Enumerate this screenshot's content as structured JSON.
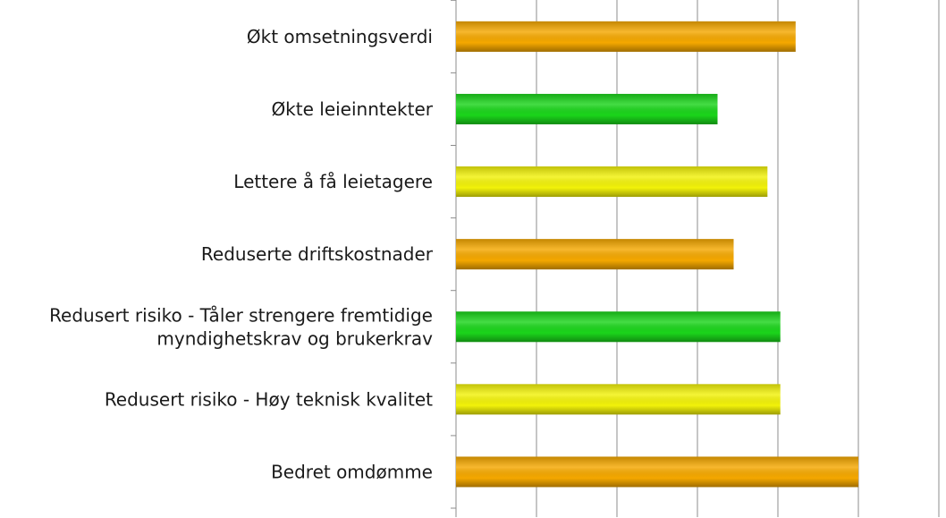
{
  "chart_data": {
    "type": "bar",
    "orientation": "horizontal",
    "title": "",
    "xlabel": "",
    "ylabel": "",
    "xlim": [
      0,
      6
    ],
    "grid": true,
    "legend": "none",
    "categories": [
      [
        "Økt omsetningsverdi"
      ],
      [
        "Økte leieinntekter"
      ],
      [
        "Lettere å få leietagere"
      ],
      [
        "Reduserte driftskostnader"
      ],
      [
        "Redusert risiko - Tåler strengere fremtidige",
        "myndighetskrav og brukerkrav"
      ],
      [
        "Redusert risiko - Høy teknisk kvalitet"
      ],
      [
        "Bedret omdømme"
      ]
    ],
    "values": [
      4.22,
      3.25,
      3.87,
      3.45,
      4.03,
      4.03,
      5.0
    ],
    "bar_colors": [
      "#F5A800",
      "#1BD51B",
      "#F2F20A",
      "#F5A800",
      "#1BD51B",
      "#F2F20A",
      "#F5A800"
    ]
  }
}
